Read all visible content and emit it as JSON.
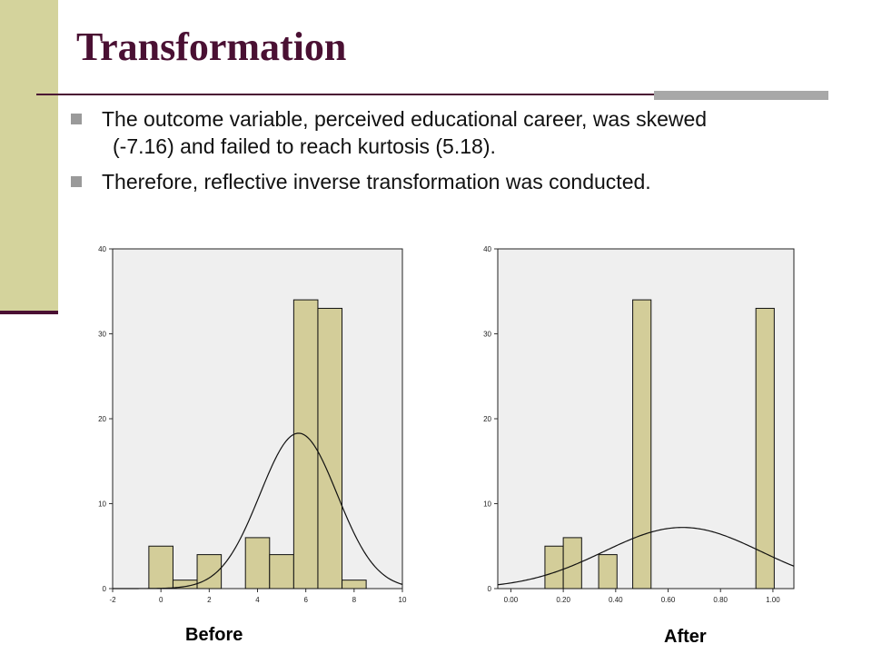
{
  "slide": {
    "title": "Transformation",
    "bullets": [
      {
        "line1": "The outcome variable, perceived educational career, was skewed",
        "line2": "(-7.16) and failed to reach kurtosis (5.18)."
      },
      {
        "line1": "Therefore, reflective inverse transformation was conducted.",
        "line2": ""
      }
    ]
  },
  "colors": {
    "accent": "#4a1033",
    "sidebar": "#d4d39c",
    "bar_fill": "#d3cd99",
    "plot_bg": "#efefef"
  },
  "chart_data": [
    {
      "type": "bar",
      "caption": "Before",
      "xlim": [
        -2,
        10
      ],
      "ylim": [
        0,
        40
      ],
      "xticks": [
        -2,
        0,
        2,
        4,
        6,
        8,
        10
      ],
      "yticks": [
        0,
        10,
        20,
        30,
        40
      ],
      "xtick_labels": [
        "-2",
        "0",
        "2",
        "4",
        "6",
        "8",
        "10"
      ],
      "ytick_labels": [
        "0",
        "10",
        "20",
        "30",
        "40"
      ],
      "bins": [
        {
          "x0": -0.5,
          "x1": 0.5,
          "value": 5
        },
        {
          "x0": 0.5,
          "x1": 1.5,
          "value": 1
        },
        {
          "x0": 1.5,
          "x1": 2.5,
          "value": 4
        },
        {
          "x0": 3.5,
          "x1": 4.5,
          "value": 6
        },
        {
          "x0": 4.5,
          "x1": 5.5,
          "value": 4
        },
        {
          "x0": 5.5,
          "x1": 6.5,
          "value": 34
        },
        {
          "x0": 6.5,
          "x1": 7.5,
          "value": 33
        },
        {
          "x0": 7.5,
          "x1": 8.5,
          "value": 1
        }
      ],
      "normal_curve": {
        "mean": 5.7,
        "sd": 1.6,
        "peak": 18.3
      }
    },
    {
      "type": "bar",
      "caption": "After",
      "xlim": [
        -0.05,
        1.08
      ],
      "ylim": [
        0,
        40
      ],
      "xticks": [
        0,
        0.2,
        0.4,
        0.6,
        0.8,
        1.0
      ],
      "yticks": [
        0,
        10,
        20,
        30,
        40
      ],
      "xtick_labels": [
        "0.00",
        "0.20",
        "0.40",
        "0.60",
        "0.80",
        "1.00"
      ],
      "ytick_labels": [
        "0",
        "10",
        "20",
        "30",
        "40"
      ],
      "bins": [
        {
          "x0": 0.13,
          "x1": 0.2,
          "value": 5
        },
        {
          "x0": 0.2,
          "x1": 0.27,
          "value": 6
        },
        {
          "x0": 0.335,
          "x1": 0.405,
          "value": 4
        },
        {
          "x0": 0.465,
          "x1": 0.535,
          "value": 34
        },
        {
          "x0": 0.935,
          "x1": 1.005,
          "value": 33
        }
      ],
      "normal_curve": {
        "mean": 0.655,
        "sd": 0.3,
        "peak": 7.2
      }
    }
  ]
}
